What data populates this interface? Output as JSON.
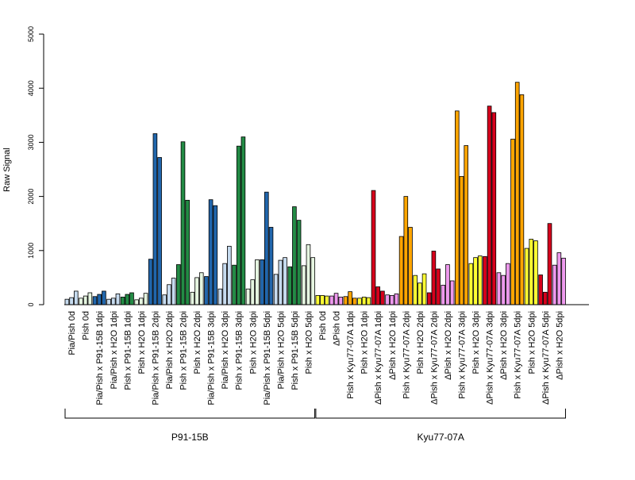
{
  "chart_data": {
    "type": "bar",
    "title": "",
    "ylabel": "Raw Signal",
    "xlabel": "",
    "ylim": [
      0,
      5000
    ],
    "yticks": [
      0,
      1000,
      2000,
      3000,
      4000,
      5000
    ],
    "grid": false,
    "legend": "none",
    "colors": {
      "light_blue": "#c6dbef",
      "blue": "#2166ac",
      "light_green": "#e5f5e0",
      "green": "#238b45",
      "yellow": "#ffff33",
      "violet": "#ee99ee",
      "orange": "#ffa500",
      "red": "#d7001c"
    },
    "categories": [
      {
        "label": "Pia/Pish 0d",
        "color": "light_blue",
        "values": [
          100,
          130,
          250
        ]
      },
      {
        "label": "Pish 0d",
        "color": "light_green",
        "values": [
          120,
          160,
          220
        ]
      },
      {
        "label": "Pia/Pish x P91-15B 1dpi",
        "color": "blue",
        "values": [
          150,
          190,
          250
        ]
      },
      {
        "label": "Pia/Pish x H2O 1dpi",
        "color": "light_blue",
        "values": [
          100,
          120,
          200
        ]
      },
      {
        "label": "Pish x P91-15B 1dpi",
        "color": "green",
        "values": [
          140,
          190,
          220
        ]
      },
      {
        "label": "Pish x H2O 1dpi",
        "color": "light_green",
        "values": [
          90,
          120,
          210
        ]
      },
      {
        "label": "Pia/Pish x P91-15B 2dpi",
        "color": "blue",
        "values": [
          840,
          3160,
          2720
        ]
      },
      {
        "label": "Pia/Pish x H2O 2dpi",
        "color": "light_blue",
        "values": [
          180,
          370,
          490
        ]
      },
      {
        "label": "Pish x P91-15B 2dpi",
        "color": "green",
        "values": [
          740,
          3010,
          1930
        ]
      },
      {
        "label": "Pish x H2O 2dpi",
        "color": "light_green",
        "values": [
          230,
          500,
          590
        ]
      },
      {
        "label": "Pia/Pish x P91-15B 3dpi",
        "color": "blue",
        "values": [
          520,
          1940,
          1830
        ]
      },
      {
        "label": "Pia/Pish x H2O 3dpi",
        "color": "light_blue",
        "values": [
          290,
          760,
          1080
        ]
      },
      {
        "label": "Pish x P91-15B 3dpi",
        "color": "green",
        "values": [
          730,
          2930,
          3100
        ]
      },
      {
        "label": "Pish x H2O 3dpi",
        "color": "light_green",
        "values": [
          290,
          460,
          830
        ]
      },
      {
        "label": "Pia/Pish x P91-15B 5dpi",
        "color": "blue",
        "values": [
          830,
          2080,
          1430
        ]
      },
      {
        "label": "Pia/Pish x H2O 5dpi",
        "color": "light_blue",
        "values": [
          560,
          820,
          870
        ]
      },
      {
        "label": "Pish x P91-15B 5dpi",
        "color": "green",
        "values": [
          700,
          1810,
          1560
        ]
      },
      {
        "label": "Pish x H2O 5dpi",
        "color": "light_green",
        "values": [
          720,
          1110,
          870
        ]
      },
      {
        "label": "Pish 0d",
        "color": "yellow",
        "values": [
          170,
          170,
          160
        ]
      },
      {
        "label": "ΔPish 0d",
        "color": "violet",
        "values": [
          160,
          210,
          140
        ]
      },
      {
        "label": "Pish x Kyu77-07A 1dpi",
        "color": "orange",
        "values": [
          150,
          240,
          120
        ]
      },
      {
        "label": "Pish x H2O 1dpi",
        "color": "yellow",
        "values": [
          120,
          140,
          130
        ]
      },
      {
        "label": "ΔPish x Kyu77-07A 1dpi",
        "color": "red",
        "values": [
          2110,
          330,
          250
        ]
      },
      {
        "label": "ΔPish x H2O 1dpi",
        "color": "violet",
        "values": [
          180,
          170,
          200
        ]
      },
      {
        "label": "Pish x Kyu77-07A 2dpi",
        "color": "orange",
        "values": [
          1260,
          2000,
          1430
        ]
      },
      {
        "label": "Pish x H2O 2dpi",
        "color": "yellow",
        "values": [
          540,
          400,
          570
        ]
      },
      {
        "label": "ΔPish x Kyu77-07A 2dpi",
        "color": "red",
        "values": [
          220,
          990,
          660
        ]
      },
      {
        "label": "ΔPish x H2O 2dpi",
        "color": "violet",
        "values": [
          360,
          740,
          440
        ]
      },
      {
        "label": "Pish x Kyu77-07A 3dpi",
        "color": "orange",
        "values": [
          3580,
          2370,
          2940
        ]
      },
      {
        "label": "Pish x H2O 3dpi",
        "color": "yellow",
        "values": [
          760,
          870,
          900
        ]
      },
      {
        "label": "ΔPish x Kyu77-07A 3dpi",
        "color": "red",
        "values": [
          890,
          3670,
          3550
        ]
      },
      {
        "label": "ΔPish x H2O 3dpi",
        "color": "violet",
        "values": [
          590,
          540,
          760
        ]
      },
      {
        "label": "Pish x Kyu77-07A 5dpi",
        "color": "orange",
        "values": [
          3060,
          4110,
          3880
        ]
      },
      {
        "label": "Pish x H2O 5dpi",
        "color": "yellow",
        "values": [
          1040,
          1210,
          1180
        ]
      },
      {
        "label": "ΔPish x Kyu77-07A 5dpi",
        "color": "red",
        "values": [
          550,
          230,
          1500
        ]
      },
      {
        "label": "ΔPish x H2O 5dpi",
        "color": "violet",
        "values": [
          730,
          960,
          860
        ]
      }
    ],
    "groups": [
      {
        "label": "P91-15B",
        "first": 0,
        "last": 17
      },
      {
        "label": "Kyu77-07A",
        "first": 18,
        "last": 35
      }
    ]
  }
}
